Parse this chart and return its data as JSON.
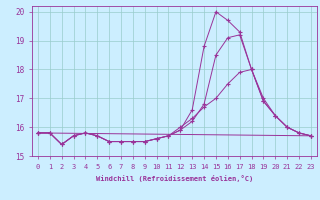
{
  "xlabel": "Windchill (Refroidissement éolien,°C)",
  "background_color": "#cceeff",
  "grid_color": "#99cccc",
  "line_color": "#993399",
  "xlim": [
    -0.5,
    23.5
  ],
  "ylim": [
    15,
    20.2
  ],
  "xticks": [
    0,
    1,
    2,
    3,
    4,
    5,
    6,
    7,
    8,
    9,
    10,
    11,
    12,
    13,
    14,
    15,
    16,
    17,
    18,
    19,
    20,
    21,
    22,
    23
  ],
  "yticks": [
    15,
    16,
    17,
    18,
    19,
    20
  ],
  "series": [
    {
      "x": [
        0,
        1,
        2,
        3,
        4,
        5,
        6,
        7,
        8,
        9,
        10,
        11,
        12,
        13,
        14,
        15,
        16,
        17,
        18,
        19,
        20,
        21,
        22,
        23
      ],
      "y": [
        15.8,
        15.8,
        15.4,
        15.7,
        15.8,
        15.7,
        15.5,
        15.5,
        15.5,
        15.5,
        15.6,
        15.7,
        15.9,
        16.6,
        18.8,
        20.0,
        19.7,
        19.3,
        18.0,
        16.9,
        16.4,
        16.0,
        15.8,
        15.7
      ]
    },
    {
      "x": [
        0,
        1,
        2,
        3,
        4,
        5,
        6,
        7,
        8,
        9,
        10,
        11,
        12,
        13,
        14,
        15,
        16,
        17,
        18,
        19,
        20,
        21,
        22,
        23
      ],
      "y": [
        15.8,
        15.8,
        15.4,
        15.7,
        15.8,
        15.7,
        15.5,
        15.5,
        15.5,
        15.5,
        15.6,
        15.7,
        15.9,
        16.2,
        16.8,
        18.5,
        19.1,
        19.2,
        18.0,
        16.9,
        16.4,
        16.0,
        15.8,
        15.7
      ]
    },
    {
      "x": [
        0,
        23
      ],
      "y": [
        15.8,
        15.7
      ]
    },
    {
      "x": [
        0,
        1,
        2,
        3,
        4,
        5,
        6,
        7,
        8,
        9,
        10,
        11,
        12,
        13,
        14,
        15,
        16,
        17,
        18,
        19,
        20,
        21,
        22,
        23
      ],
      "y": [
        15.8,
        15.8,
        15.4,
        15.7,
        15.8,
        15.7,
        15.5,
        15.5,
        15.5,
        15.5,
        15.6,
        15.7,
        16.0,
        16.3,
        16.7,
        17.0,
        17.5,
        17.9,
        18.0,
        17.0,
        16.4,
        16.0,
        15.8,
        15.7
      ]
    }
  ]
}
